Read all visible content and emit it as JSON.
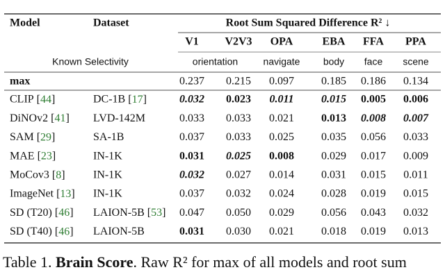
{
  "table": {
    "header": {
      "model": "Model",
      "dataset": "Dataset",
      "group": "Root Sum Squared Difference R² ↓",
      "columns": [
        "V1",
        "V2V3",
        "OPA",
        "EBA",
        "FFA",
        "PPA"
      ],
      "selectivity_label": "Known Selectivity",
      "selectivity": [
        "orientation",
        "navigate",
        "body",
        "face",
        "scene"
      ]
    },
    "max_row": {
      "model": "max",
      "values": [
        "0.237",
        "0.215",
        "0.097",
        "0.185",
        "0.186",
        "0.134"
      ]
    },
    "rows": [
      {
        "model": "CLIP",
        "model_ref": "[44]",
        "dataset": "DC-1B",
        "dataset_ref": "[17]",
        "values": [
          "0.032",
          "0.023",
          "0.011",
          "0.015",
          "0.005",
          "0.006"
        ],
        "styles": [
          "bi",
          "b",
          "bi",
          "bi",
          "b",
          "b"
        ]
      },
      {
        "model": "DiNOv2",
        "model_ref": "[41]",
        "dataset": "LVD-142M",
        "values": [
          "0.033",
          "0.033",
          "0.021",
          "0.013",
          "0.008",
          "0.007"
        ],
        "styles": [
          "",
          "",
          "",
          "b",
          "bi",
          "bi"
        ]
      },
      {
        "model": "SAM",
        "model_ref": "[29]",
        "dataset": "SA-1B",
        "values": [
          "0.037",
          "0.033",
          "0.025",
          "0.035",
          "0.056",
          "0.033"
        ],
        "styles": [
          "",
          "",
          "",
          "",
          "",
          ""
        ]
      },
      {
        "model": "MAE",
        "model_ref": "[23]",
        "dataset": "IN-1K",
        "values": [
          "0.031",
          "0.025",
          "0.008",
          "0.029",
          "0.017",
          "0.009"
        ],
        "styles": [
          "b",
          "bi",
          "b",
          "",
          "",
          ""
        ]
      },
      {
        "model": "MoCov3",
        "model_ref": "[8]",
        "dataset": "IN-1K",
        "values": [
          "0.032",
          "0.027",
          "0.014",
          "0.031",
          "0.015",
          "0.011"
        ],
        "styles": [
          "bi",
          "",
          "",
          "",
          "",
          ""
        ]
      },
      {
        "model": "ImageNet",
        "model_ref": "[13]",
        "dataset": "IN-1K",
        "values": [
          "0.037",
          "0.032",
          "0.024",
          "0.028",
          "0.019",
          "0.015"
        ],
        "styles": [
          "",
          "",
          "",
          "",
          "",
          ""
        ]
      },
      {
        "model": "SD (T20)",
        "model_ref": "[46]",
        "dataset": "LAION-5B",
        "dataset_ref": "[53]",
        "values": [
          "0.047",
          "0.050",
          "0.029",
          "0.056",
          "0.043",
          "0.032"
        ],
        "styles": [
          "",
          "",
          "",
          "",
          "",
          ""
        ]
      },
      {
        "model": "SD (T40)",
        "model_ref": "[46]",
        "dataset": "LAION-5B",
        "values": [
          "0.031",
          "0.030",
          "0.021",
          "0.018",
          "0.019",
          "0.013"
        ],
        "styles": [
          "b",
          "",
          "",
          "",
          "",
          ""
        ]
      }
    ]
  },
  "caption": {
    "label": "Table 1.",
    "title": "Brain Score",
    "text": ". Raw R² for max of all models and root sum"
  }
}
